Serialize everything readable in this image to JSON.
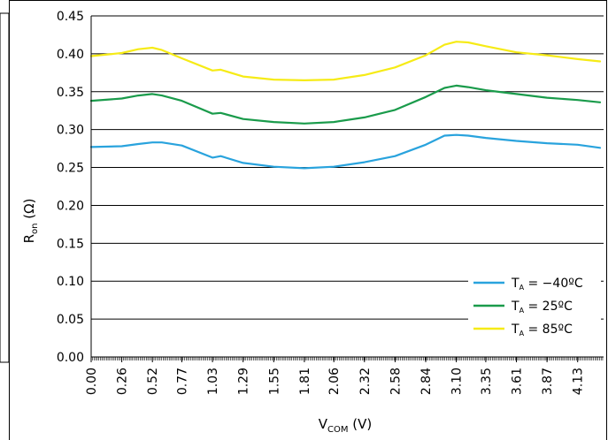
{
  "chart_data": {
    "type": "line",
    "title": "",
    "xlabel": {
      "main": "V",
      "sub": "COM",
      "unit": " (V)"
    },
    "ylabel": {
      "main": "R",
      "sub": "on",
      "unit": " (Ω)"
    },
    "xlim": [
      0,
      4.35
    ],
    "ylim": [
      0,
      0.45
    ],
    "grid": {
      "y": true,
      "x": false
    },
    "legend_position": "bottom-right",
    "x_ticks": [
      "0.00",
      "0.26",
      "0.52",
      "0.77",
      "1.03",
      "1.29",
      "1.55",
      "1.81",
      "2.06",
      "2.32",
      "2.58",
      "2.84",
      "3.10",
      "3.35",
      "3.61",
      "3.87",
      "4.13"
    ],
    "x_tick_values": [
      0.0,
      0.26,
      0.52,
      0.77,
      1.03,
      1.29,
      1.55,
      1.81,
      2.06,
      2.32,
      2.58,
      2.84,
      3.1,
      3.35,
      3.61,
      3.87,
      4.13
    ],
    "y_ticks": [
      "0.00",
      "0.05",
      "0.10",
      "0.15",
      "0.20",
      "0.25",
      "0.30",
      "0.35",
      "0.40",
      "0.45"
    ],
    "y_tick_values": [
      0.0,
      0.05,
      0.1,
      0.15,
      0.2,
      0.25,
      0.3,
      0.35,
      0.4,
      0.45
    ],
    "series": [
      {
        "name": "T = −40ºC",
        "name_main": "T",
        "name_sub": "A",
        "name_rest": " = −40ºC",
        "color": "#29a3dd",
        "x": [
          0.0,
          0.26,
          0.4,
          0.52,
          0.6,
          0.77,
          1.03,
          1.1,
          1.29,
          1.55,
          1.81,
          2.06,
          2.32,
          2.58,
          2.84,
          3.0,
          3.1,
          3.2,
          3.35,
          3.61,
          3.87,
          4.13,
          4.32
        ],
        "values": [
          0.277,
          0.278,
          0.281,
          0.283,
          0.283,
          0.279,
          0.263,
          0.265,
          0.256,
          0.251,
          0.249,
          0.251,
          0.257,
          0.265,
          0.28,
          0.292,
          0.293,
          0.292,
          0.289,
          0.285,
          0.282,
          0.28,
          0.276
        ]
      },
      {
        "name": "T = 25ºC",
        "name_main": "T",
        "name_sub": "A",
        "name_rest": " = 25ºC",
        "color": "#1a9b4b",
        "x": [
          0.0,
          0.26,
          0.4,
          0.52,
          0.6,
          0.77,
          1.03,
          1.1,
          1.29,
          1.55,
          1.81,
          2.06,
          2.32,
          2.58,
          2.84,
          3.0,
          3.1,
          3.2,
          3.35,
          3.61,
          3.87,
          4.13,
          4.32
        ],
        "values": [
          0.338,
          0.341,
          0.345,
          0.347,
          0.345,
          0.338,
          0.321,
          0.322,
          0.314,
          0.31,
          0.308,
          0.31,
          0.316,
          0.326,
          0.343,
          0.355,
          0.358,
          0.356,
          0.352,
          0.347,
          0.342,
          0.339,
          0.336
        ]
      },
      {
        "name": "T = 85ºC",
        "name_main": "T",
        "name_sub": "A",
        "name_rest": " = 85ºC",
        "color": "#f6eb16",
        "x": [
          0.0,
          0.26,
          0.4,
          0.52,
          0.6,
          0.77,
          1.03,
          1.1,
          1.29,
          1.55,
          1.81,
          2.06,
          2.32,
          2.58,
          2.84,
          3.0,
          3.1,
          3.2,
          3.35,
          3.61,
          3.87,
          4.13,
          4.32
        ],
        "values": [
          0.397,
          0.401,
          0.406,
          0.408,
          0.405,
          0.394,
          0.378,
          0.379,
          0.37,
          0.366,
          0.365,
          0.366,
          0.372,
          0.382,
          0.398,
          0.412,
          0.416,
          0.415,
          0.41,
          0.402,
          0.398,
          0.393,
          0.39
        ]
      }
    ]
  }
}
